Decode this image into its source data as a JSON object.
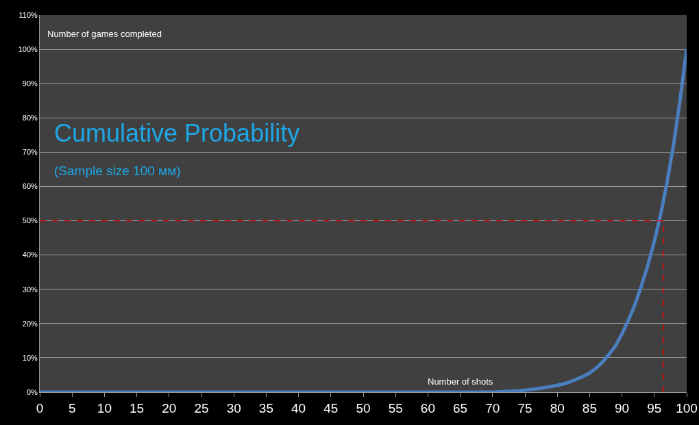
{
  "chart_data": {
    "type": "line",
    "title": "Cumulative Probability",
    "subtitle": "(Sample size 100 мм)",
    "xlabel": "Number of shots",
    "ylabel": "Number of games completed",
    "x": [
      0,
      70,
      72,
      74,
      76,
      78,
      80,
      81,
      82,
      83,
      84,
      85,
      86,
      87,
      88,
      89,
      90,
      91,
      92,
      93,
      94,
      95,
      96,
      97,
      98,
      99,
      100
    ],
    "series": [
      {
        "color": "#4a7ebf",
        "values": [
          0,
          0,
          0.2,
          0.4,
          0.8,
          1.3,
          2,
          2.4,
          3,
          3.8,
          4.6,
          5.6,
          7,
          8.8,
          11,
          13.5,
          17,
          21,
          25.5,
          31,
          37,
          44,
          52,
          61.5,
          72.5,
          85.5,
          100
        ]
      }
    ],
    "xlim": [
      0,
      100
    ],
    "xticks": [
      0,
      5,
      10,
      15,
      20,
      25,
      30,
      35,
      40,
      45,
      50,
      55,
      60,
      65,
      70,
      75,
      80,
      85,
      90,
      95,
      100
    ],
    "ylim": [
      0,
      110
    ],
    "yticks": [
      {
        "value": 0,
        "label": "0%"
      },
      {
        "value": 10,
        "label": "10%"
      },
      {
        "value": 20,
        "label": "20%"
      },
      {
        "value": 30,
        "label": "30%"
      },
      {
        "value": 40,
        "label": "40%"
      },
      {
        "value": 50,
        "label": "50%"
      },
      {
        "value": 60,
        "label": "60%"
      },
      {
        "value": 70,
        "label": "70%"
      },
      {
        "value": 80,
        "label": "80%"
      },
      {
        "value": 90,
        "label": "90%"
      },
      {
        "value": 100,
        "label": "100%"
      },
      {
        "value": 110,
        "label": "110%"
      }
    ],
    "ref_lines": [
      {
        "axis": "y",
        "value": 50,
        "color": "#ff0000",
        "line_style": "dashed"
      },
      {
        "axis": "x",
        "value": 96.4,
        "color": "#ff0000",
        "line_style": "dashed"
      }
    ],
    "grid": "y",
    "marker": "none",
    "line_style": "solid"
  }
}
